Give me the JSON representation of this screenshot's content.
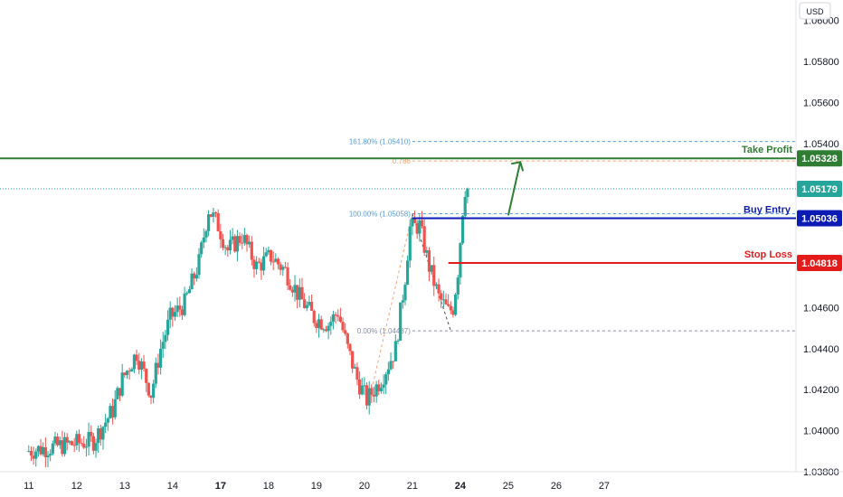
{
  "currency_button": "USD",
  "colors": {
    "up": "#26a69a",
    "down": "#ef5350",
    "take_profit": "#2e7d32",
    "buy_entry": "#0d1bb5",
    "stop_loss": "#e31b1b",
    "last_price": "#26a69a",
    "fib": "#5b9bd5",
    "fib_orange": "#f4a47a"
  },
  "chart_data": {
    "type": "candlestick",
    "title": "",
    "xlabel": "",
    "ylabel": "",
    "ylim": [
      1.038,
      1.061
    ],
    "xlim": [
      10.4,
      27.0
    ],
    "x_ticks": [
      {
        "label": "11",
        "x": 11,
        "bold": false
      },
      {
        "label": "12",
        "x": 12,
        "bold": false
      },
      {
        "label": "13",
        "x": 13,
        "bold": false
      },
      {
        "label": "14",
        "x": 14,
        "bold": false
      },
      {
        "label": "17",
        "x": 15,
        "bold": true
      },
      {
        "label": "18",
        "x": 16,
        "bold": false
      },
      {
        "label": "19",
        "x": 17,
        "bold": false
      },
      {
        "label": "20",
        "x": 18,
        "bold": false
      },
      {
        "label": "21",
        "x": 19,
        "bold": false
      },
      {
        "label": "24",
        "x": 20,
        "bold": true
      },
      {
        "label": "25",
        "x": 21,
        "bold": false
      },
      {
        "label": "26",
        "x": 22,
        "bold": false
      },
      {
        "label": "27",
        "x": 23,
        "bold": false
      }
    ],
    "y_ticks": [
      "1.03800",
      "1.04000",
      "1.04200",
      "1.04400",
      "1.04600",
      "1.05400",
      "1.05600",
      "1.05800",
      "1.06000"
    ],
    "levels": {
      "take_profit": {
        "value": 1.05328,
        "label": "Take Profit",
        "badge": "1.05328"
      },
      "buy_entry": {
        "value": 1.05036,
        "label": "Buy Entry",
        "badge": "1.05036"
      },
      "stop_loss": {
        "value": 1.04818,
        "label": "Stop Loss",
        "badge": "1.04818"
      },
      "last_price": {
        "value": 1.05179,
        "badge": "1.05179"
      }
    },
    "fib_levels": [
      {
        "ratio": "161.80%",
        "label": "161.80% (1.05410)",
        "value": 1.0541
      },
      {
        "ratio": "0.786",
        "label": "0.786",
        "value": 1.05315
      },
      {
        "ratio": "100.00%",
        "label": "100.00% (1.05058)",
        "value": 1.05058
      },
      {
        "ratio": "0.00%",
        "label": "0.00% (1.04487)",
        "value": 1.04487
      }
    ],
    "anchors": [
      {
        "x": 11.0,
        "y": 1.039
      },
      {
        "x": 11.8,
        "y": 1.0393
      },
      {
        "x": 12.4,
        "y": 1.0395
      },
      {
        "x": 12.8,
        "y": 1.041
      },
      {
        "x": 13.0,
        "y": 1.0425
      },
      {
        "x": 13.3,
        "y": 1.0438
      },
      {
        "x": 13.6,
        "y": 1.0418
      },
      {
        "x": 13.8,
        "y": 1.044
      },
      {
        "x": 14.0,
        "y": 1.0455
      },
      {
        "x": 14.3,
        "y": 1.0462
      },
      {
        "x": 14.6,
        "y": 1.0482
      },
      {
        "x": 14.8,
        "y": 1.0508
      },
      {
        "x": 15.0,
        "y": 1.05
      },
      {
        "x": 15.2,
        "y": 1.0488
      },
      {
        "x": 15.5,
        "y": 1.0495
      },
      {
        "x": 15.8,
        "y": 1.048
      },
      {
        "x": 16.1,
        "y": 1.0485
      },
      {
        "x": 16.4,
        "y": 1.0478
      },
      {
        "x": 16.7,
        "y": 1.0465
      },
      {
        "x": 17.0,
        "y": 1.0455
      },
      {
        "x": 17.3,
        "y": 1.0452
      },
      {
        "x": 17.5,
        "y": 1.0458
      },
      {
        "x": 17.7,
        "y": 1.044
      },
      {
        "x": 17.9,
        "y": 1.0425
      },
      {
        "x": 18.1,
        "y": 1.0415
      },
      {
        "x": 18.4,
        "y": 1.0425
      },
      {
        "x": 18.7,
        "y": 1.044
      },
      {
        "x": 18.9,
        "y": 1.0475
      },
      {
        "x": 19.0,
        "y": 1.0499
      },
      {
        "x": 19.2,
        "y": 1.05
      },
      {
        "x": 19.4,
        "y": 1.048
      },
      {
        "x": 19.6,
        "y": 1.0465
      },
      {
        "x": 19.8,
        "y": 1.0458
      },
      {
        "x": 19.9,
        "y": 1.046
      },
      {
        "x": 20.0,
        "y": 1.0478
      },
      {
        "x": 20.1,
        "y": 1.0508
      },
      {
        "x": 20.15,
        "y": 1.0518
      }
    ]
  }
}
